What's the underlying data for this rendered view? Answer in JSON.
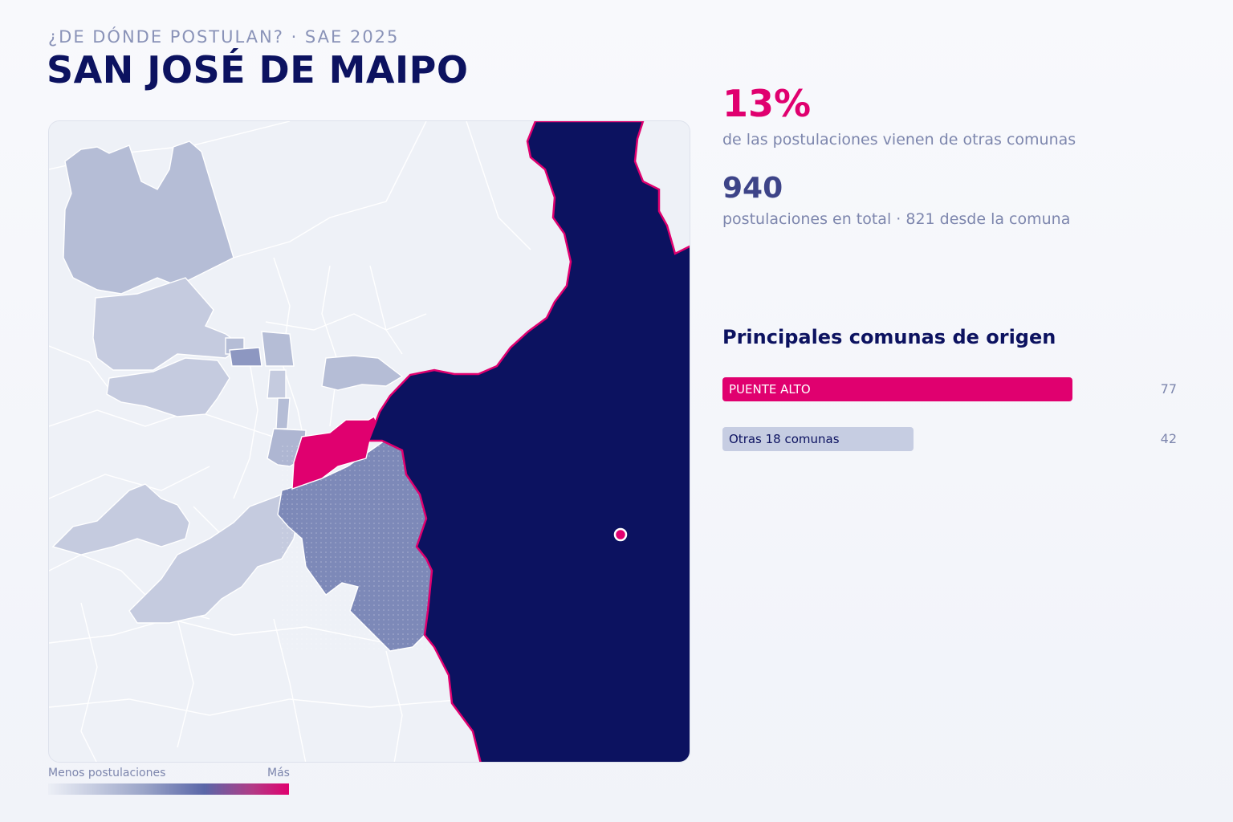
{
  "header": {
    "kicker": "¿DE DÓNDE POSTULAN? · SAE 2025",
    "title": "SAN JOSÉ DE MAIPO"
  },
  "stats": {
    "pct": "13%",
    "pct_desc": "de las postulaciones vienen de otras comunas",
    "total": "940",
    "total_desc": "postulaciones en total · 821 desde la comuna"
  },
  "ranking": {
    "title": "Principales comunas de origen",
    "items": [
      {
        "label": "PUENTE ALTO",
        "value": 77,
        "share": 1.0
      },
      {
        "label": "Otras 18 comunas",
        "value": 42,
        "share": 0.545
      }
    ]
  },
  "legend": {
    "low": "Menos postulaciones",
    "high": "Más"
  },
  "colors": {
    "highlight": "#e0006f",
    "selected": "#0c1260",
    "accent_text": "#3d4488",
    "neutral_region": "#eef1f7",
    "low_region": "#c5cbdf",
    "mid_region": "#aeb6d2",
    "high_region": "#7d89b8"
  }
}
